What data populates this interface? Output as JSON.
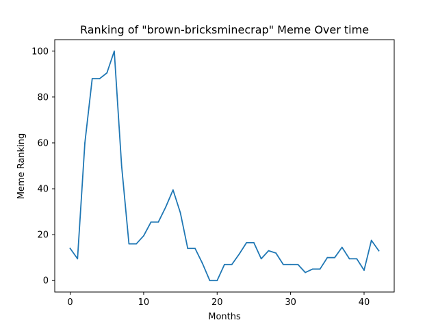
{
  "chart_data": {
    "type": "line",
    "title": "Ranking of \"brown-bricksminecrap\" Meme Over time",
    "xlabel": "Months",
    "ylabel": "Meme Ranking",
    "xlim": [
      -2.1,
      44.1
    ],
    "ylim": [
      -5,
      105
    ],
    "xticks": [
      0,
      10,
      20,
      30,
      40
    ],
    "yticks": [
      0,
      20,
      40,
      60,
      80,
      100
    ],
    "grid": false,
    "line_color": "#1f77b4",
    "series": [
      {
        "x": [
          0,
          1,
          2,
          3,
          4,
          5,
          6,
          7,
          8,
          9,
          10,
          11,
          12,
          13,
          14,
          15,
          16,
          17,
          18,
          19,
          20,
          21,
          22,
          23,
          24,
          25,
          26,
          27,
          28,
          29,
          30,
          31,
          32,
          33,
          34,
          35,
          36,
          37,
          38,
          39,
          40,
          41,
          42
        ],
        "values": [
          14,
          9.5,
          60,
          88,
          88,
          90.5,
          100,
          50,
          16,
          16,
          19.5,
          25.5,
          25.5,
          32,
          39.5,
          29.5,
          14,
          14,
          7.5,
          0,
          0,
          7,
          7,
          11.5,
          16.5,
          16.5,
          9.5,
          13,
          12,
          7,
          7,
          7,
          3.5,
          5,
          5,
          10,
          10,
          14.5,
          9.5,
          9.5,
          4.5,
          17.5,
          13
        ]
      }
    ]
  }
}
